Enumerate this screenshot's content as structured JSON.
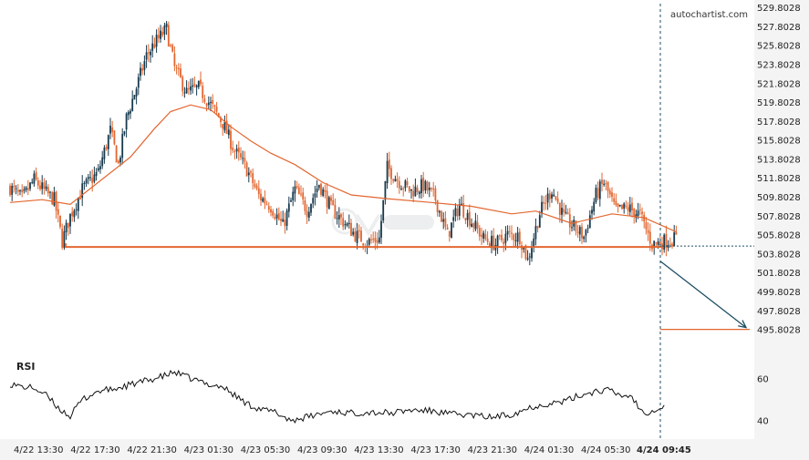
{
  "watermark": "autochartist.com",
  "colors": {
    "up": "#17394d",
    "down": "#e2662f",
    "ma": "#e2662f",
    "level": "#e2662f",
    "rsi": "#111111",
    "axis_bg": "#f4f4f4",
    "marker": "#1d4e63"
  },
  "chart_data": [
    {
      "type": "candlestick",
      "title": "",
      "ylim": [
        494.8,
        530.2
      ],
      "y_ticks": [
        "529.8028",
        "527.8028",
        "525.8028",
        "523.8028",
        "521.8028",
        "519.8028",
        "517.8028",
        "515.8028",
        "513.8028",
        "511.8028",
        "509.8028",
        "507.8028",
        "505.8028",
        "503.8028",
        "501.8028",
        "499.8028",
        "497.8028",
        "495.8028"
      ],
      "x_ticks": [
        "4/22 13:30",
        "4/22 17:30",
        "4/22 21:30",
        "4/23 01:30",
        "4/23 05:30",
        "4/23 09:30",
        "4/23 13:30",
        "4/23 17:30",
        "4/23 21:30",
        "4/24 01:30",
        "4/24 05:30",
        "4/24 09:45"
      ],
      "support_level": 504.5,
      "target_level": 495.8,
      "forecast_arrow": {
        "from": 503.0,
        "to": 495.8
      },
      "current_price": 504.6,
      "close_path": [
        [
          0,
          510.8
        ],
        [
          6,
          509.6
        ],
        [
          12,
          511.6
        ],
        [
          18,
          510.2
        ],
        [
          22,
          509.5
        ],
        [
          26,
          505.1
        ],
        [
          30,
          507.8
        ],
        [
          36,
          510.6
        ],
        [
          44,
          512.4
        ],
        [
          50,
          516.8
        ],
        [
          54,
          513.2
        ],
        [
          58,
          518.1
        ],
        [
          64,
          522.0
        ],
        [
          68,
          524.7
        ],
        [
          72,
          526.0
        ],
        [
          78,
          527.5
        ],
        [
          82,
          523.4
        ],
        [
          88,
          520.8
        ],
        [
          94,
          521.3
        ],
        [
          100,
          519.5
        ],
        [
          106,
          517.6
        ],
        [
          112,
          514.6
        ],
        [
          118,
          512.7
        ],
        [
          124,
          509.9
        ],
        [
          130,
          508.8
        ],
        [
          136,
          506.7
        ],
        [
          142,
          510.6
        ],
        [
          148,
          508.4
        ],
        [
          154,
          511.2
        ],
        [
          160,
          508.6
        ],
        [
          166,
          507.2
        ],
        [
          172,
          505.8
        ],
        [
          178,
          505.0
        ],
        [
          184,
          505.4
        ],
        [
          188,
          512.9
        ],
        [
          194,
          511.4
        ],
        [
          200,
          510.4
        ],
        [
          206,
          511.0
        ],
        [
          212,
          509.6
        ],
        [
          218,
          505.7
        ],
        [
          224,
          509.0
        ],
        [
          230,
          507.2
        ],
        [
          236,
          505.4
        ],
        [
          242,
          504.8
        ],
        [
          248,
          505.8
        ],
        [
          254,
          505.6
        ],
        [
          258,
          503.1
        ],
        [
          264,
          508.1
        ],
        [
          270,
          510.6
        ],
        [
          276,
          507.6
        ],
        [
          282,
          506.4
        ],
        [
          286,
          505.6
        ],
        [
          292,
          510.0
        ],
        [
          296,
          511.3
        ],
        [
          302,
          508.3
        ],
        [
          308,
          508.6
        ],
        [
          314,
          507.9
        ],
        [
          320,
          504.8
        ],
        [
          326,
          505.1
        ],
        [
          332,
          505.4
        ]
      ],
      "n_candles": 333,
      "ma_path": [
        [
          0,
          509.2
        ],
        [
          16,
          509.5
        ],
        [
          30,
          509.0
        ],
        [
          45,
          511.5
        ],
        [
          60,
          514.0
        ],
        [
          72,
          517.0
        ],
        [
          80,
          518.8
        ],
        [
          90,
          519.5
        ],
        [
          100,
          519.0
        ],
        [
          110,
          517.2
        ],
        [
          120,
          515.7
        ],
        [
          130,
          514.4
        ],
        [
          142,
          513.2
        ],
        [
          156,
          511.3
        ],
        [
          170,
          510.0
        ],
        [
          188,
          509.6
        ],
        [
          210,
          509.2
        ],
        [
          230,
          508.8
        ],
        [
          250,
          508.0
        ],
        [
          262,
          508.3
        ],
        [
          280,
          507.0
        ],
        [
          300,
          508.0
        ],
        [
          316,
          507.6
        ],
        [
          332,
          506.1
        ]
      ]
    },
    {
      "type": "line",
      "title": "RSI",
      "ylim": [
        32,
        72
      ],
      "y_ticks": [
        "60",
        "40"
      ],
      "path": [
        [
          0,
          57.5
        ],
        [
          6,
          56.0
        ],
        [
          12,
          55.5
        ],
        [
          18,
          52.0
        ],
        [
          24,
          46.0
        ],
        [
          30,
          42.0
        ],
        [
          36,
          50.0
        ],
        [
          44,
          54.0
        ],
        [
          52,
          55.0
        ],
        [
          60,
          57.0
        ],
        [
          68,
          59.0
        ],
        [
          76,
          61.0
        ],
        [
          82,
          63.0
        ],
        [
          90,
          60.0
        ],
        [
          98,
          57.5
        ],
        [
          106,
          56.0
        ],
        [
          112,
          52.0
        ],
        [
          118,
          48.0
        ],
        [
          126,
          45.0
        ],
        [
          132,
          44.0
        ],
        [
          140,
          40.0
        ],
        [
          150,
          42.0
        ],
        [
          160,
          44.5
        ],
        [
          170,
          43.5
        ],
        [
          180,
          44.0
        ],
        [
          190,
          43.5
        ],
        [
          200,
          45.0
        ],
        [
          210,
          44.5
        ],
        [
          220,
          43.0
        ],
        [
          230,
          42.5
        ],
        [
          240,
          41.5
        ],
        [
          250,
          43.0
        ],
        [
          260,
          46.5
        ],
        [
          268,
          48.0
        ],
        [
          276,
          49.0
        ],
        [
          284,
          52.0
        ],
        [
          292,
          54.0
        ],
        [
          298,
          54.5
        ],
        [
          304,
          52.0
        ],
        [
          310,
          51.5
        ],
        [
          314,
          45.0
        ],
        [
          318,
          44.0
        ],
        [
          322,
          45.5
        ],
        [
          326,
          46.5
        ]
      ]
    }
  ]
}
